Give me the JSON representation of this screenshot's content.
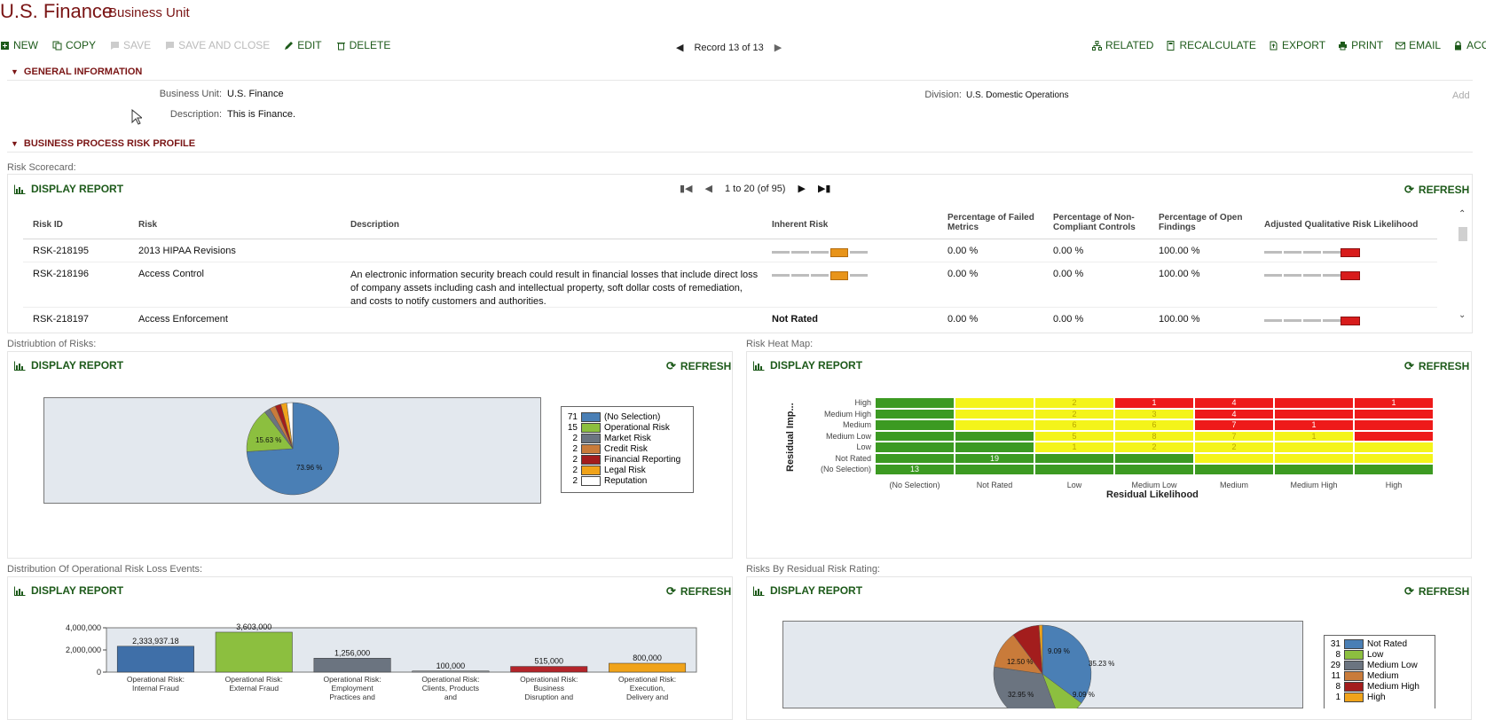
{
  "header": {
    "title": "U.S. Finance",
    "subtitle": "Business Unit"
  },
  "toolbar": {
    "left": [
      {
        "label": "NEW",
        "icon": "new-icon",
        "enabled": true
      },
      {
        "label": "COPY",
        "icon": "copy-icon",
        "enabled": true
      },
      {
        "label": "SAVE",
        "icon": "save-icon",
        "enabled": false
      },
      {
        "label": "SAVE AND CLOSE",
        "icon": "save-close-icon",
        "enabled": false
      },
      {
        "label": "EDIT",
        "icon": "pencil-icon",
        "enabled": true
      },
      {
        "label": "DELETE",
        "icon": "trash-icon",
        "enabled": true
      }
    ],
    "record": "Record 13 of 13",
    "right": [
      {
        "label": "RELATED",
        "icon": "hierarchy-icon"
      },
      {
        "label": "RECALCULATE",
        "icon": "calculator-icon"
      },
      {
        "label": "EXPORT",
        "icon": "export-icon"
      },
      {
        "label": "PRINT",
        "icon": "printer-icon"
      },
      {
        "label": "EMAIL",
        "icon": "envelope-icon"
      },
      {
        "label": "ACCES",
        "icon": "lock-icon"
      }
    ]
  },
  "general": {
    "section_label": "GENERAL INFORMATION",
    "business_unit_label": "Business Unit:",
    "business_unit_value": "U.S. Finance",
    "description_label": "Description:",
    "description_value": "This is Finance.",
    "division_label": "Division:",
    "division_value": "U.S. Domestic Operations",
    "add_label": "Add"
  },
  "risk_profile": {
    "section_label": "BUSINESS PROCESS RISK PROFILE"
  },
  "scorecard": {
    "title": "Risk Scorecard:",
    "display_report": "DISPLAY REPORT",
    "refresh": "REFRESH",
    "pager": "1 to 20 (of 95)",
    "columns": [
      "Risk ID",
      "Risk",
      "Description",
      "Inherent Risk",
      "Percentage of Failed Metrics",
      "Percentage of Non-Compliant Controls",
      "Percentage of Open Findings",
      "Adjusted Qualitative Risk Likelihood"
    ],
    "rows": [
      {
        "id": "RSK-218195",
        "risk": "2013 HIPAA Revisions",
        "description": "",
        "inherent": "bar-orange",
        "inherent_text": "",
        "failed": "0.00 %",
        "noncompliant": "0.00 %",
        "open": "100.00 %"
      },
      {
        "id": "RSK-218196",
        "risk": "Access Control",
        "description": "An electronic information security breach could result in financial losses that include direct loss of company assets including cash and intellectual property, soft dollar costs of remediation, and costs to notify customers and authorities.",
        "inherent": "bar-orange",
        "inherent_text": "",
        "failed": "0.00 %",
        "noncompliant": "0.00 %",
        "open": "100.00 %"
      },
      {
        "id": "RSK-218197",
        "risk": "Access Enforcement",
        "description": "",
        "inherent": "none",
        "inherent_text": "Not Rated",
        "failed": "0.00 %",
        "noncompliant": "0.00 %",
        "open": "100.00 %"
      }
    ]
  },
  "distribution": {
    "title": "Distriubtion of Risks:",
    "display_report": "DISPLAY REPORT",
    "refresh": "REFRESH",
    "slice_labels": [
      "73.96 %",
      "15.63 %"
    ],
    "legend": [
      {
        "count": "71",
        "label": "(No Selection)",
        "color": "#4a7fb5"
      },
      {
        "count": "15",
        "label": "Operational Risk",
        "color": "#8cbf3f"
      },
      {
        "count": "2",
        "label": "Market Risk",
        "color": "#6b7480"
      },
      {
        "count": "2",
        "label": "Credit Risk",
        "color": "#c97b3a"
      },
      {
        "count": "2",
        "label": "Financial Reporting",
        "color": "#a31d1d"
      },
      {
        "count": "2",
        "label": "Legal Risk",
        "color": "#f0a31a"
      },
      {
        "count": "2",
        "label": "Reputation",
        "color": "#ffffff"
      }
    ]
  },
  "heatmap": {
    "title": "Risk Heat Map:",
    "display_report": "DISPLAY REPORT",
    "refresh": "REFRESH",
    "ylabel": "Residual Imp...",
    "xlabel": "Residual Likelihood",
    "rows": [
      "High",
      "Medium High",
      "Medium",
      "Medium Low",
      "Low",
      "Not Rated",
      "(No Selection)"
    ],
    "cols": [
      "(No Selection)",
      "Not Rated",
      "Low",
      "Medium Low",
      "Medium",
      "Medium High",
      "High"
    ],
    "colors": {
      "green": "#3c9a22",
      "yellow": "#f4f41a",
      "red": "#ee1a1a"
    },
    "grid": [
      [
        "green",
        "yellow",
        "yellow",
        "red",
        "red",
        "red",
        "red"
      ],
      [
        "green",
        "yellow",
        "yellow",
        "yellow",
        "red",
        "red",
        "red"
      ],
      [
        "green",
        "yellow",
        "yellow",
        "yellow",
        "red",
        "red",
        "red"
      ],
      [
        "green",
        "green",
        "yellow",
        "yellow",
        "yellow",
        "yellow",
        "red"
      ],
      [
        "green",
        "green",
        "yellow",
        "yellow",
        "yellow",
        "yellow",
        "yellow"
      ],
      [
        "green",
        "green",
        "green",
        "green",
        "yellow",
        "yellow",
        "yellow"
      ],
      [
        "green",
        "green",
        "green",
        "green",
        "green",
        "green",
        "green"
      ]
    ],
    "values": [
      [
        "",
        "",
        "2",
        "1",
        "4",
        "",
        "1"
      ],
      [
        "",
        "",
        "2",
        "3",
        "4",
        "",
        ""
      ],
      [
        "",
        "",
        "6",
        "6",
        "7",
        "1",
        ""
      ],
      [
        "",
        "",
        "5",
        "8",
        "7",
        "1",
        ""
      ],
      [
        "",
        "",
        "1",
        "2",
        "2",
        "",
        ""
      ],
      [
        "",
        "19",
        "",
        "",
        "",
        "",
        ""
      ],
      [
        "13",
        "",
        "",
        "",
        "",
        "",
        ""
      ]
    ]
  },
  "oprisk": {
    "title": "Distribution Of Operational Risk Loss Events:",
    "display_report": "DISPLAY REPORT",
    "refresh": "REFRESH"
  },
  "residual": {
    "title": "Risks By Residual Risk Rating:",
    "display_report": "DISPLAY REPORT",
    "refresh": "REFRESH",
    "slice_labels": [
      "35.23 %",
      "32.95 %",
      "12.50 %",
      "9.09 %",
      "9.09 %"
    ],
    "legend": [
      {
        "count": "31",
        "label": "Not Rated",
        "color": "#4a7fb5"
      },
      {
        "count": "8",
        "label": "Low",
        "color": "#8cbf3f"
      },
      {
        "count": "29",
        "label": "Medium Low",
        "color": "#6b7480"
      },
      {
        "count": "11",
        "label": "Medium",
        "color": "#c97b3a"
      },
      {
        "count": "8",
        "label": "Medium High",
        "color": "#a31d1d"
      },
      {
        "count": "1",
        "label": "High",
        "color": "#f0a31a"
      }
    ]
  },
  "chart_data": [
    {
      "type": "pie",
      "categories": [
        "(No Selection)",
        "Operational Risk",
        "Market Risk",
        "Credit Risk",
        "Financial Reporting",
        "Legal Risk",
        "Reputation"
      ],
      "values": [
        71,
        15,
        2,
        2,
        2,
        2,
        2
      ]
    },
    {
      "type": "heatmap",
      "xlabel": "Residual Likelihood",
      "ylabel": "Residual Imp...",
      "x": [
        "(No Selection)",
        "Not Rated",
        "Low",
        "Medium Low",
        "Medium",
        "Medium High",
        "High"
      ],
      "y": [
        "High",
        "Medium High",
        "Medium",
        "Medium Low",
        "Low",
        "Not Rated",
        "(No Selection)"
      ]
    },
    {
      "type": "bar",
      "categories": [
        "Operational Risk: Internal Fraud",
        "Operational Risk: External Fraud",
        "Operational Risk: Employment Practices and",
        "Operational Risk: Clients, Products and",
        "Operational Risk: Business Disruption and",
        "Operational Risk: Execution, Delivery and"
      ],
      "values": [
        2333937.18,
        3603000,
        1256000,
        100000,
        515000,
        800000
      ],
      "value_labels": [
        "2,333,937.18",
        "3,603,000",
        "1,256,000",
        "100,000",
        "515,000",
        "800,000"
      ],
      "colors": [
        "#3f6fa8",
        "#8cbf3f",
        "#6b7480",
        "#9aa0a6",
        "#b3242a",
        "#f0a31a"
      ],
      "yticks": [
        "4,000,000",
        "2,000,000",
        "0"
      ],
      "ylim": [
        0,
        4000000
      ]
    },
    {
      "type": "pie",
      "categories": [
        "Not Rated",
        "Low",
        "Medium Low",
        "Medium",
        "Medium High",
        "High"
      ],
      "values": [
        31,
        8,
        29,
        11,
        8,
        1
      ]
    }
  ]
}
